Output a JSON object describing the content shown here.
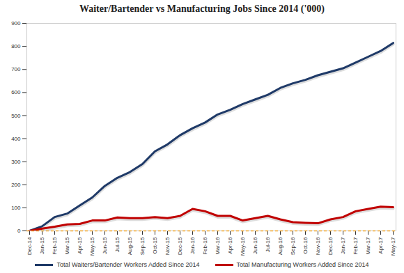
{
  "chart_data": {
    "type": "line",
    "title": "Waiter/Bartender vs Manufacturing Jobs Since 2014 ('000)",
    "x": [
      "Dec-14",
      "Jan-15",
      "Feb-15",
      "Mar-15",
      "Apr-15",
      "May-15",
      "Jun-15",
      "Jul-15",
      "Aug-15",
      "Sep-15",
      "Oct-15",
      "Nov-15",
      "Dec-15",
      "Jan-16",
      "Feb-16",
      "Mar-16",
      "Apr-16",
      "May-16",
      "Jun-16",
      "Jul-16",
      "Aug-16",
      "Sep-16",
      "Oct-16",
      "Nov-16",
      "Dec-16",
      "Jan-17",
      "Feb-17",
      "Mar-17",
      "Apr-17",
      "May-17"
    ],
    "series": [
      {
        "name": "Total Waiters/Bartender Workers Added Since 2014",
        "color": "#1f3a68",
        "values": [
          0,
          20,
          60,
          75,
          110,
          145,
          195,
          230,
          255,
          290,
          345,
          375,
          415,
          445,
          470,
          505,
          525,
          550,
          570,
          590,
          620,
          640,
          655,
          675,
          690,
          705,
          730,
          755,
          780,
          815
        ]
      },
      {
        "name": "Total Manufacturing Workers Added Since 2014",
        "color": "#c00000",
        "values": [
          0,
          10,
          18,
          28,
          30,
          45,
          45,
          58,
          55,
          55,
          60,
          55,
          65,
          95,
          85,
          65,
          65,
          45,
          55,
          65,
          50,
          38,
          35,
          33,
          50,
          60,
          85,
          95,
          105,
          103
        ]
      }
    ],
    "ylim": [
      0,
      900
    ],
    "yticks": [
      0,
      100,
      200,
      300,
      400,
      500,
      600,
      700,
      800,
      900
    ],
    "grid": false,
    "legend": "bottom"
  }
}
